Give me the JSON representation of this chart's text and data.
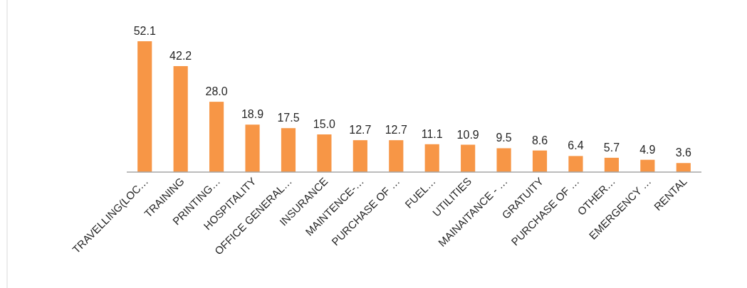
{
  "chart_data": {
    "type": "bar",
    "categories": [
      "TRAVELLING(LOC…",
      "TRAINING",
      "PRINTING…",
      "HOSPITALITY",
      "OFFICE GENERAL…",
      "INSURANCE",
      "MAINTENCE-…",
      "PURCHASE OF …",
      "FUEL…",
      "UTILITIES",
      "MAINAITANCE - …",
      "GRATUITY",
      "PURCHASE OF …",
      "OTHER…",
      "EMERGENCY …",
      "RENTAL"
    ],
    "values": [
      52.1,
      42.2,
      28.0,
      18.9,
      17.5,
      15.0,
      12.7,
      12.7,
      11.1,
      10.9,
      9.5,
      8.6,
      6.4,
      5.7,
      4.9,
      3.6
    ],
    "value_labels": [
      "52.1",
      "42.2",
      "28.0",
      "18.9",
      "17.5",
      "15.0",
      "12.7",
      "12.7",
      "11.1",
      "10.9",
      "9.5",
      "8.6",
      "6.4",
      "5.7",
      "4.9",
      "3.6"
    ],
    "color": "#f79646"
  }
}
